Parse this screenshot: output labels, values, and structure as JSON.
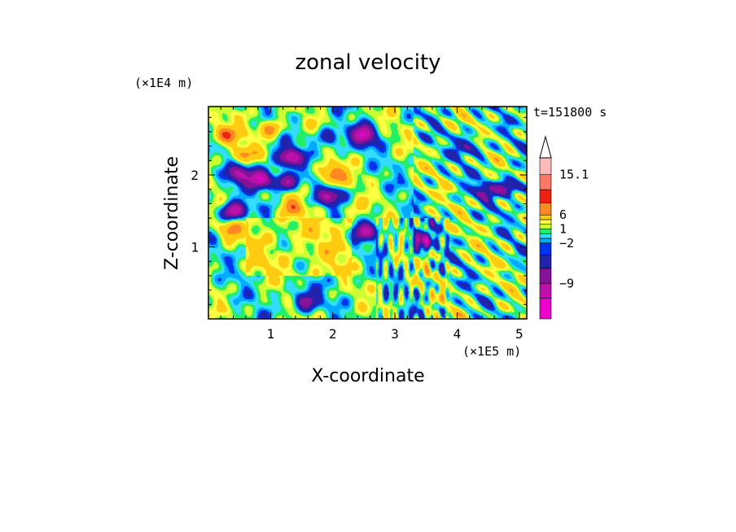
{
  "chart_data": {
    "type": "heatmap",
    "title": "zonal velocity",
    "xlabel": "X-coordinate",
    "ylabel": "Z-coordinate",
    "x_unit": "(×1E5 m)",
    "y_unit": "(×1E4 m)",
    "time_label": "t=151800 s",
    "xlim": [
      0,
      5.12
    ],
    "ylim": [
      0,
      2.95
    ],
    "x_ticks": [
      "1",
      "2",
      "3",
      "4",
      "5"
    ],
    "y_ticks": [
      "1",
      "2"
    ],
    "colorbar": {
      "levels": [
        -15,
        -12,
        -9,
        -6,
        -3,
        -2,
        -1,
        0,
        1,
        2,
        3,
        6,
        9,
        12,
        15.1
      ],
      "colors": [
        "#ee00cc",
        "#bb11aa",
        "#881199",
        "#2222aa",
        "#0033ee",
        "#00aaff",
        "#33ddff",
        "#22ee66",
        "#ccff33",
        "#ffff44",
        "#ffcc11",
        "#ff8822",
        "#ee2211",
        "#ff7766",
        "#ffbbbb"
      ],
      "tick_labels": [
        "15.1",
        "6",
        "1",
        "−2",
        "−9"
      ],
      "tick_values": [
        15.1,
        6,
        1,
        -2,
        -9
      ],
      "extend": "max"
    },
    "features": [
      {
        "x": 0.4,
        "z": 1.5,
        "v": -12
      },
      {
        "x": 0.85,
        "z": 1.95,
        "v": -12
      },
      {
        "x": 0.5,
        "z": 2.0,
        "v": -9
      },
      {
        "x": 1.3,
        "z": 2.25,
        "v": -12
      },
      {
        "x": 1.25,
        "z": 1.9,
        "v": -9
      },
      {
        "x": 1.95,
        "z": 1.7,
        "v": -9
      },
      {
        "x": 2.5,
        "z": 2.55,
        "v": -12
      },
      {
        "x": 1.95,
        "z": 2.5,
        "v": -6
      },
      {
        "x": 2.55,
        "z": 1.22,
        "v": -9
      },
      {
        "x": 3.4,
        "z": 1.08,
        "v": -9
      },
      {
        "x": 4.2,
        "z": 2.4,
        "v": -6
      },
      {
        "x": 4.85,
        "z": 1.83,
        "v": -9
      },
      {
        "x": 4.45,
        "z": 1.78,
        "v": -6
      },
      {
        "x": 0.25,
        "z": 2.57,
        "v": 9
      },
      {
        "x": 1.0,
        "z": 2.65,
        "v": 6
      },
      {
        "x": 0.55,
        "z": 2.3,
        "v": 6
      },
      {
        "x": 2.0,
        "z": 2.0,
        "v": 9
      },
      {
        "x": 0.35,
        "z": 1.23,
        "v": 6
      },
      {
        "x": 1.35,
        "z": 1.55,
        "v": 6
      },
      {
        "x": 2.3,
        "z": 1.5,
        "v": 3
      },
      {
        "x": 1.55,
        "z": 0.25,
        "v": -9
      }
    ]
  }
}
